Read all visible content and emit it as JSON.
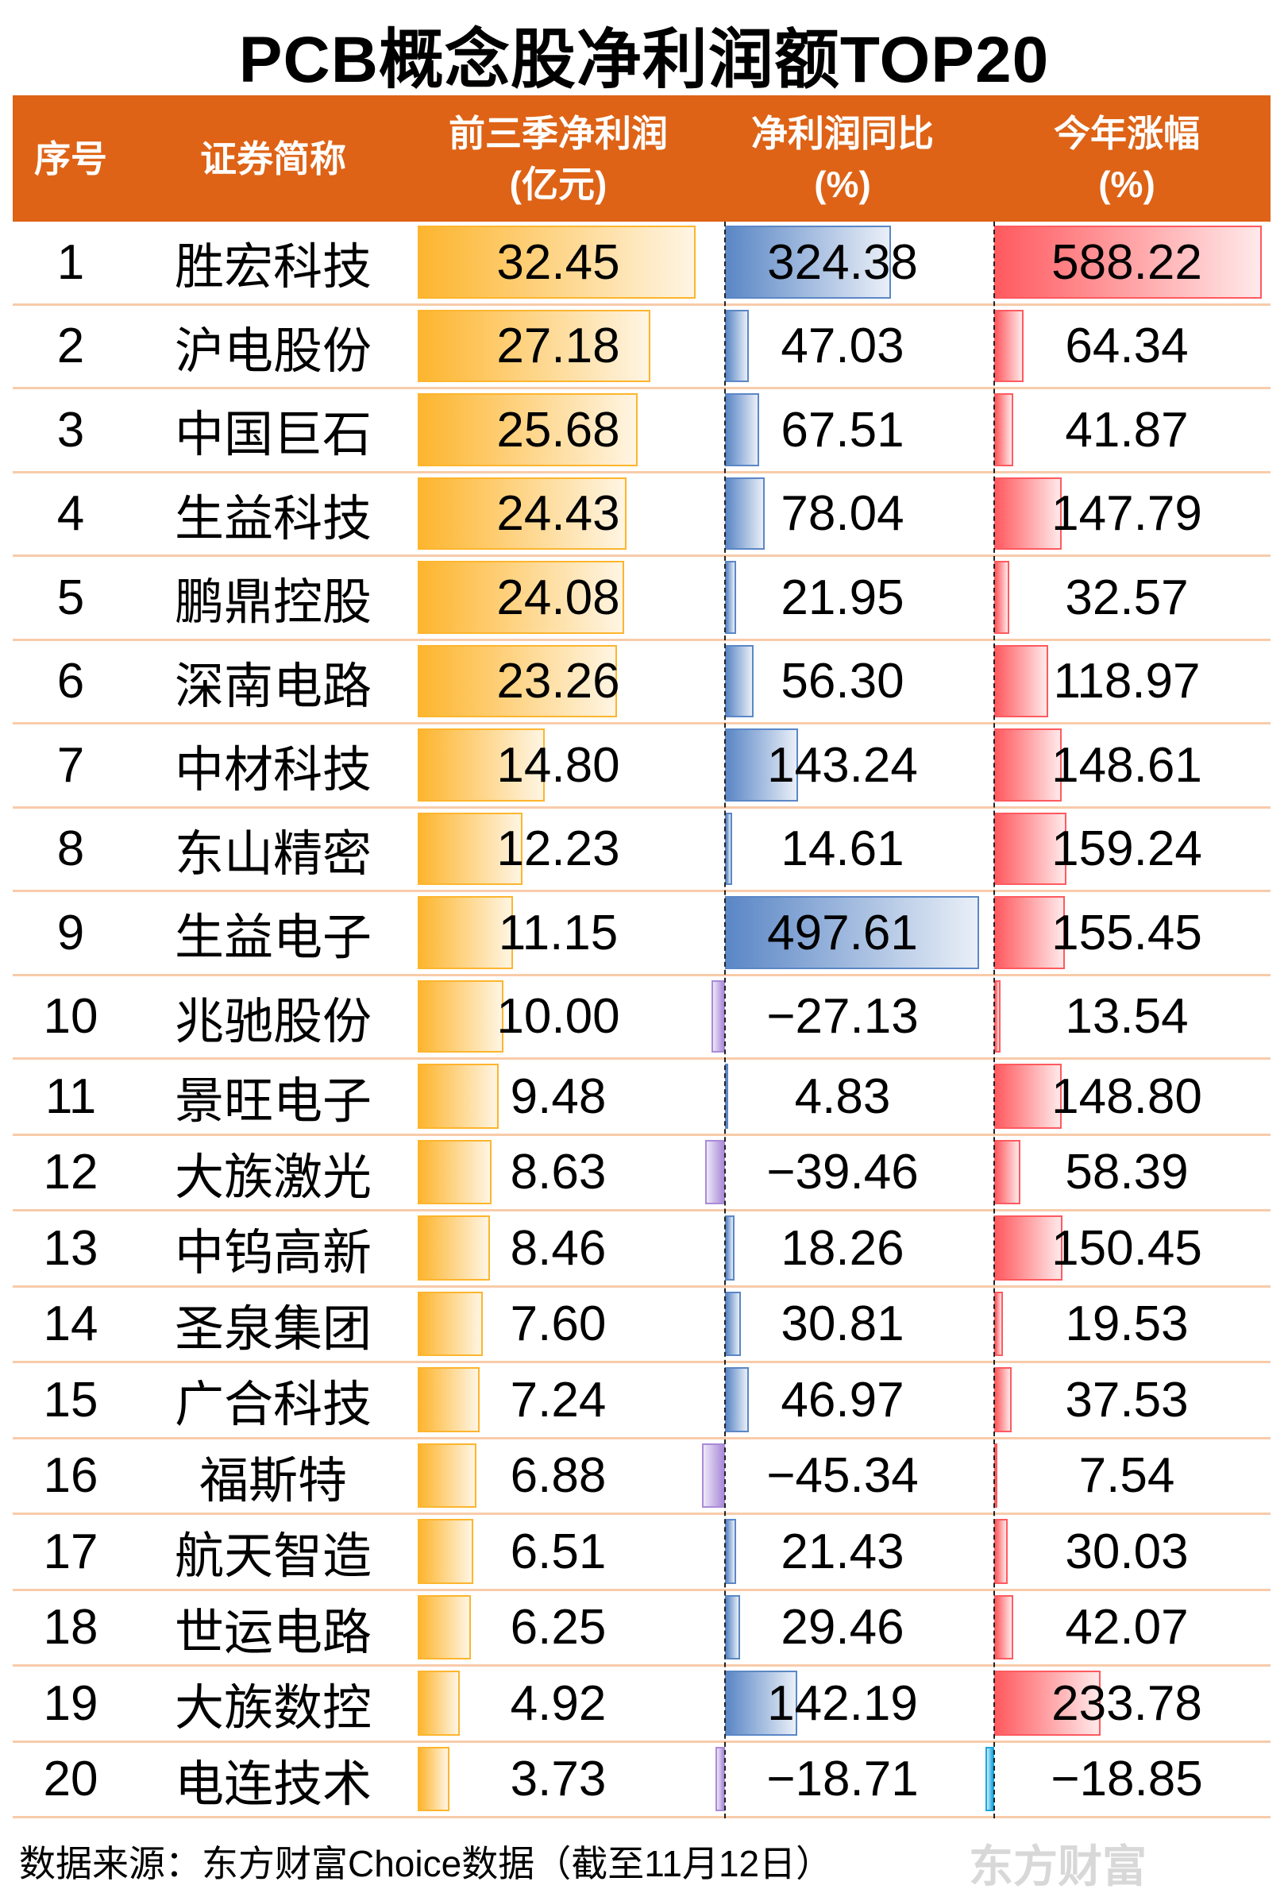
{
  "title": "PCB概念股净利润额TOP20",
  "headers": {
    "seq": "序号",
    "name": "证券简称",
    "profit": [
      "前三季净利润",
      "(亿元)"
    ],
    "yoy": [
      "净利润同比",
      "(%)"
    ],
    "ytd": [
      "今年涨幅",
      "(%)"
    ]
  },
  "watermark": "东方财富",
  "footer": "数据来源：东方财富Choice数据（截至11月12日）",
  "colors": {
    "header": "#DE6316",
    "profit_bar": "#FDB52E",
    "yoy_bar": "#5B87C6",
    "yoy_negative": "#A98BD8",
    "ytd_bar": "#FF5A5F",
    "ytd_negative": "#1AA7E0",
    "row_divider": "#F8CBAA"
  },
  "chart_data": {
    "type": "table",
    "title": "PCB概念股净利润额TOP20",
    "columns": [
      "序号",
      "证券简称",
      "前三季净利润(亿元)",
      "净利润同比(%)",
      "今年涨幅(%)"
    ],
    "rows": [
      {
        "rank": "1",
        "name": "胜宏科技",
        "profit": "32.45",
        "yoy": "324.38",
        "ytd": "588.22"
      },
      {
        "rank": "2",
        "name": "沪电股份",
        "profit": "27.18",
        "yoy": "47.03",
        "ytd": "64.34"
      },
      {
        "rank": "3",
        "name": "中国巨石",
        "profit": "25.68",
        "yoy": "67.51",
        "ytd": "41.87"
      },
      {
        "rank": "4",
        "name": "生益科技",
        "profit": "24.43",
        "yoy": "78.04",
        "ytd": "147.79"
      },
      {
        "rank": "5",
        "name": "鹏鼎控股",
        "profit": "24.08",
        "yoy": "21.95",
        "ytd": "32.57"
      },
      {
        "rank": "6",
        "name": "深南电路",
        "profit": "23.26",
        "yoy": "56.30",
        "ytd": "118.97"
      },
      {
        "rank": "7",
        "name": "中材科技",
        "profit": "14.80",
        "yoy": "143.24",
        "ytd": "148.61"
      },
      {
        "rank": "8",
        "name": "东山精密",
        "profit": "12.23",
        "yoy": "14.61",
        "ytd": "159.24"
      },
      {
        "rank": "9",
        "name": "生益电子",
        "profit": "11.15",
        "yoy": "497.61",
        "ytd": "155.45"
      },
      {
        "rank": "10",
        "name": "兆驰股份",
        "profit": "10.00",
        "yoy": "−27.13",
        "ytd": "13.54"
      },
      {
        "rank": "11",
        "name": "景旺电子",
        "profit": "9.48",
        "yoy": "4.83",
        "ytd": "148.80"
      },
      {
        "rank": "12",
        "name": "大族激光",
        "profit": "8.63",
        "yoy": "−39.46",
        "ytd": "58.39"
      },
      {
        "rank": "13",
        "name": "中钨高新",
        "profit": "8.46",
        "yoy": "18.26",
        "ytd": "150.45"
      },
      {
        "rank": "14",
        "name": "圣泉集团",
        "profit": "7.60",
        "yoy": "30.81",
        "ytd": "19.53"
      },
      {
        "rank": "15",
        "name": "广合科技",
        "profit": "7.24",
        "yoy": "46.97",
        "ytd": "37.53"
      },
      {
        "rank": "16",
        "name": "福斯特",
        "profit": "6.88",
        "yoy": "−45.34",
        "ytd": "7.54"
      },
      {
        "rank": "17",
        "name": "航天智造",
        "profit": "6.51",
        "yoy": "21.43",
        "ytd": "30.03"
      },
      {
        "rank": "18",
        "name": "世运电路",
        "profit": "6.25",
        "yoy": "29.46",
        "ytd": "42.07"
      },
      {
        "rank": "19",
        "name": "大族数控",
        "profit": "4.92",
        "yoy": "142.19",
        "ytd": "233.78"
      },
      {
        "rank": "20",
        "name": "电连技术",
        "profit": "3.73",
        "yoy": "−18.71",
        "ytd": "−18.85"
      }
    ]
  }
}
